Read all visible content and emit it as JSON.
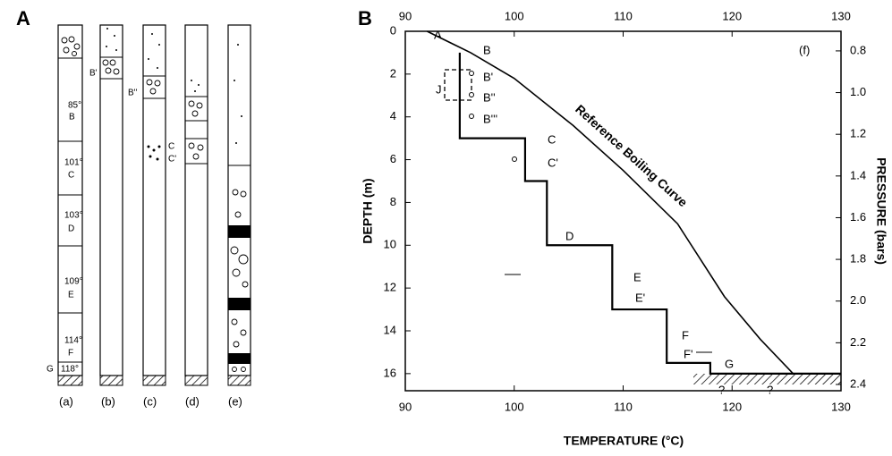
{
  "panel_a": {
    "letter": "A",
    "columns": [
      {
        "label": "(a)",
        "notes": [
          "85°",
          "B",
          "101°",
          "C",
          "103°",
          "D",
          "109°",
          "E",
          "114°",
          "F",
          "G",
          "118°"
        ]
      },
      {
        "label": "(b)",
        "notes": [
          "B'"
        ]
      },
      {
        "label": "(c)",
        "notes": [
          "B''",
          "C",
          "C'"
        ]
      },
      {
        "label": "(d)",
        "notes": []
      },
      {
        "label": "(e)",
        "notes": []
      }
    ]
  },
  "chart_data": {
    "type": "line",
    "letter": "B",
    "xlabel": "TEMPERATURE (°C)",
    "ylabel": "DEPTH (m)",
    "y2label": "PRESSURE (bars)",
    "xlim": [
      90,
      130
    ],
    "xticks": [
      90,
      100,
      110,
      120,
      130
    ],
    "ylim": [
      16.8,
      0
    ],
    "yticks": [
      0,
      2,
      4,
      6,
      8,
      10,
      12,
      14,
      16
    ],
    "y2lim": [
      2.43,
      0.706
    ],
    "y2ticks": [
      0.8,
      {
        "value": 1.0,
        "label": "1.0"
      },
      1.2,
      1.4,
      1.6,
      1.8,
      {
        "value": 2.0,
        "label": "2.0"
      },
      2.2,
      2.4
    ],
    "series": [
      {
        "name": "Reference Boiling Curve",
        "color": "#000000",
        "x": [
          92,
          96,
          100,
          105.4,
          110,
          115,
          119.3,
          122.6,
          125.6
        ],
        "values": [
          0,
          1,
          2.2,
          4.4,
          6.5,
          9,
          12.4,
          14.4,
          16
        ]
      },
      {
        "color": "#000000",
        "x": [
          95,
          95,
          101,
          101,
          103,
          103,
          109,
          109,
          114,
          114,
          118,
          118,
          130
        ],
        "values": [
          1,
          5,
          5,
          7,
          7,
          10,
          10,
          13,
          13,
          15.5,
          15.5,
          16,
          16
        ]
      }
    ],
    "annotations": [
      "A",
      "B",
      "B'",
      "B''",
      "B'''",
      "C",
      "C'",
      "D",
      "E",
      "E'",
      "F",
      "F'",
      "G",
      "J",
      "?",
      "?",
      "(f)"
    ]
  }
}
